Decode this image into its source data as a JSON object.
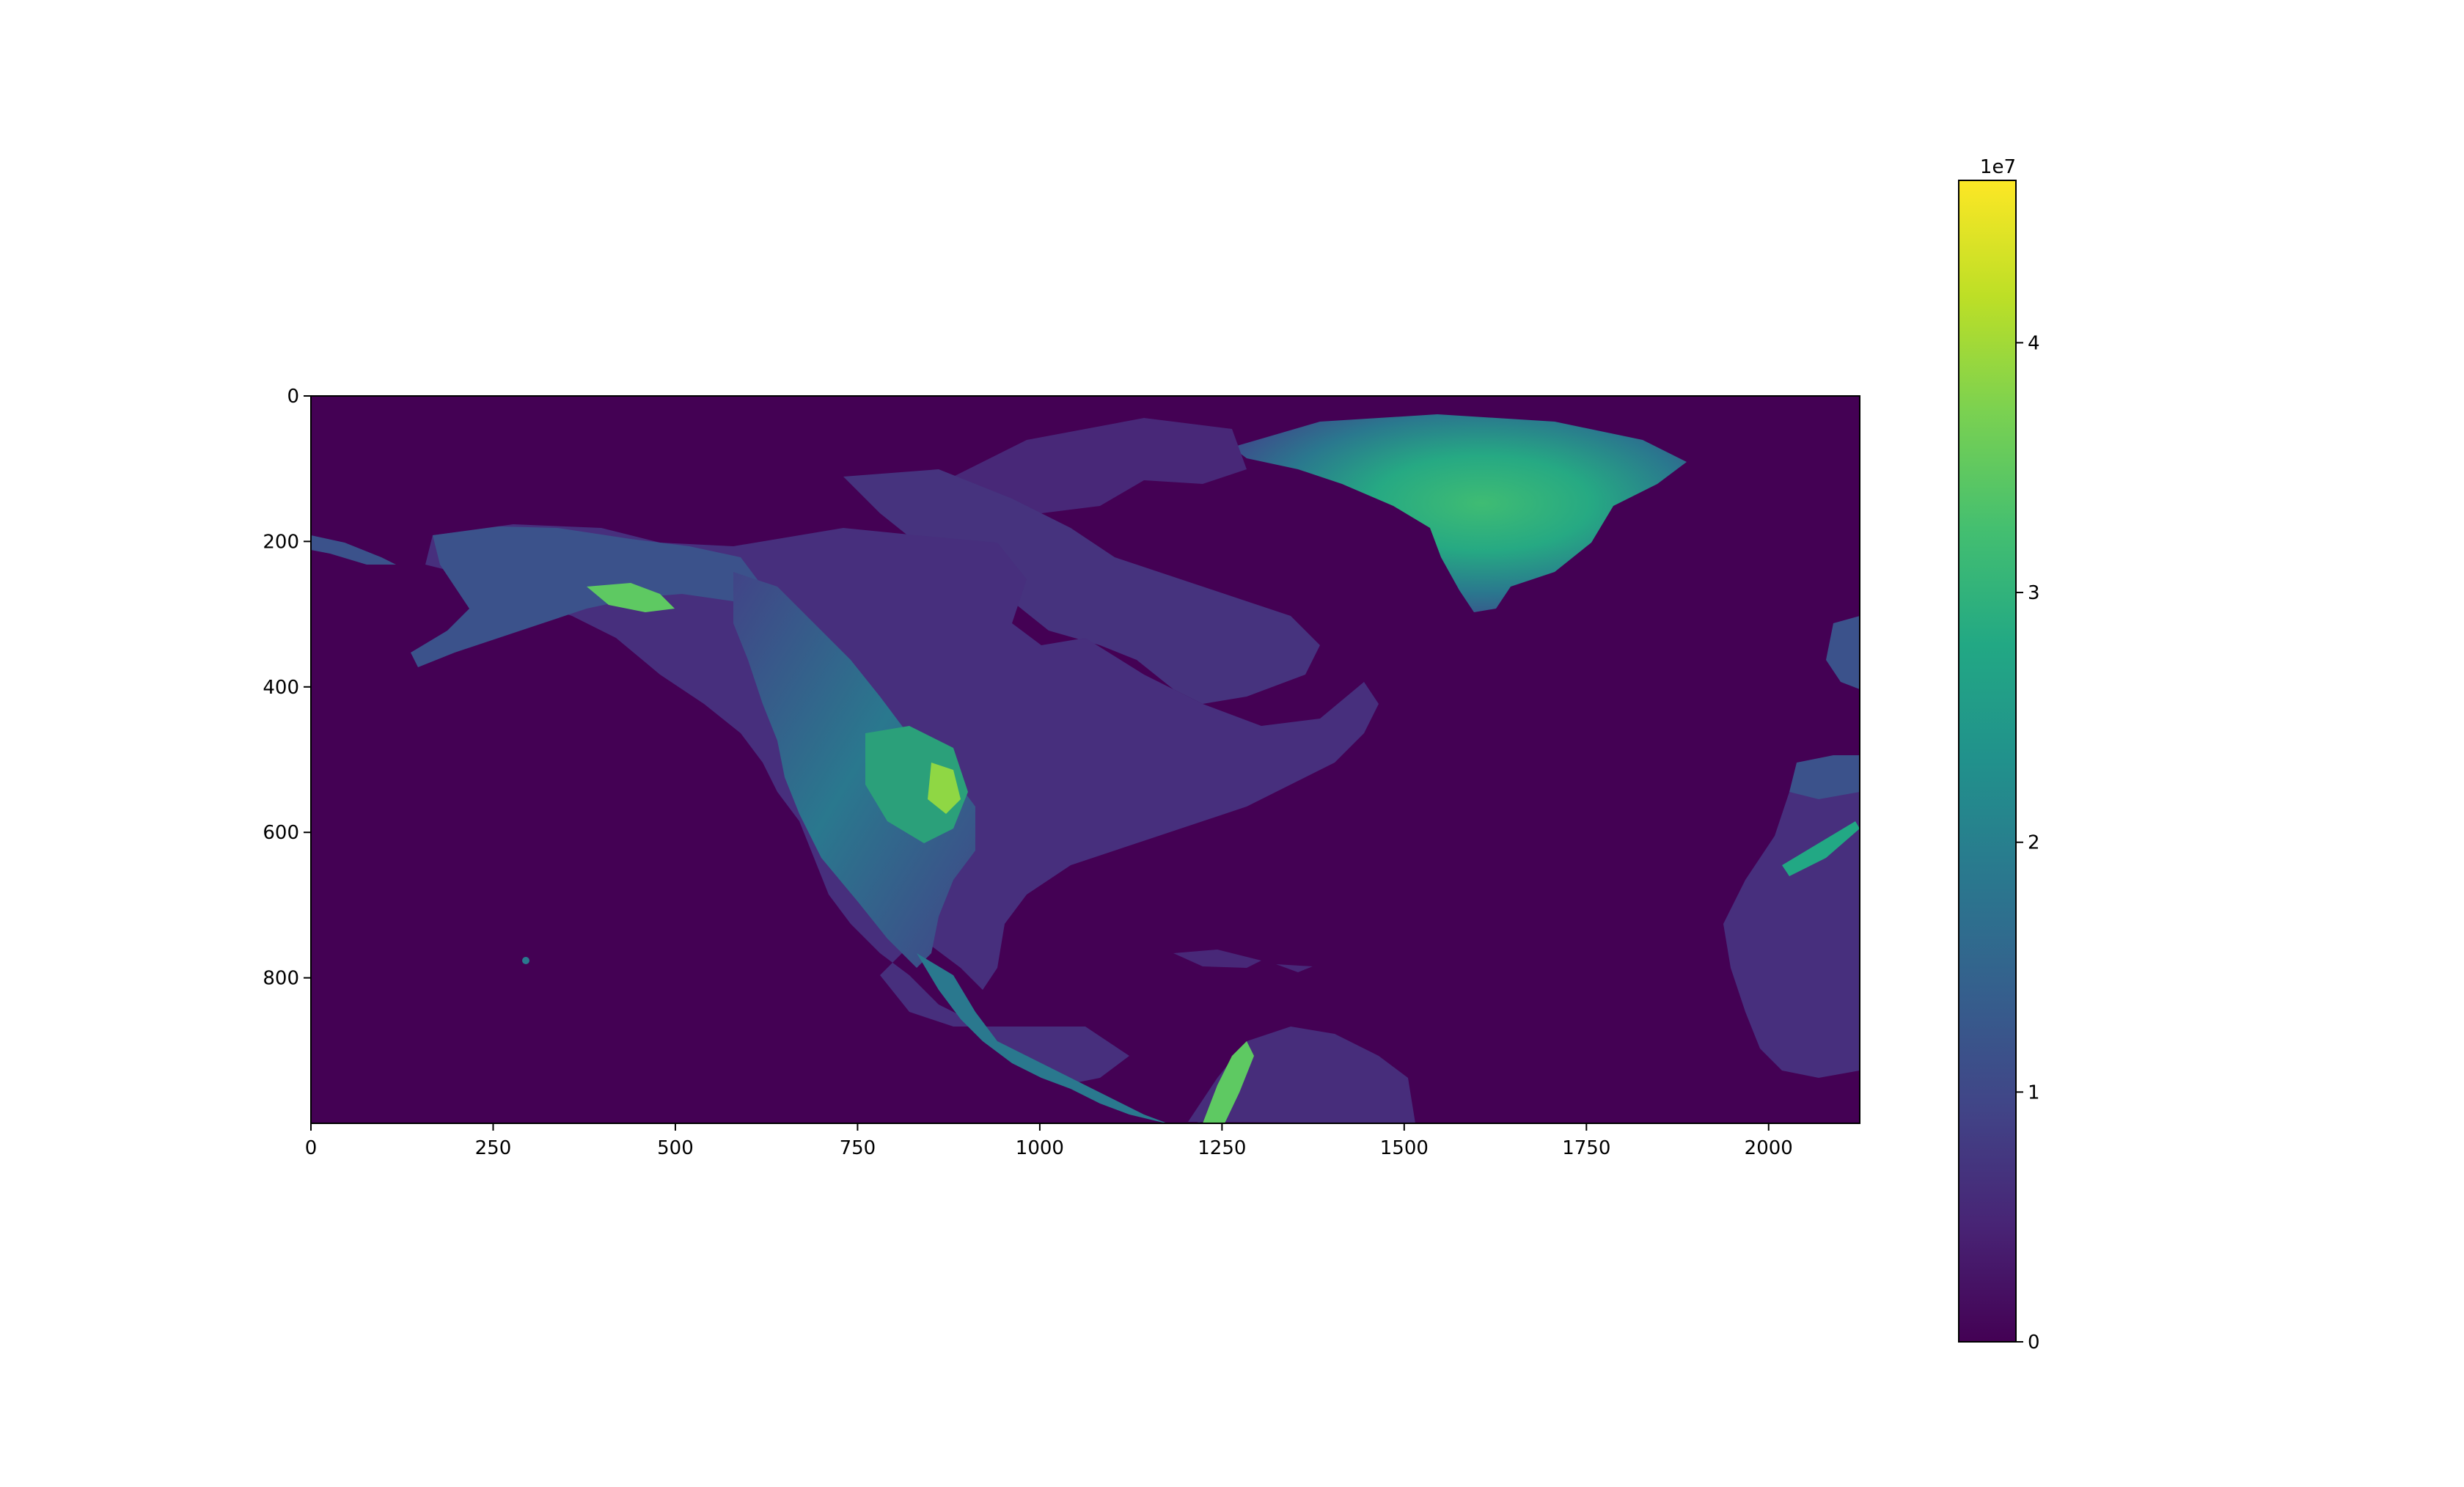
{
  "chart_data": {
    "type": "heatmap",
    "title": "",
    "xlabel": "",
    "ylabel": "",
    "description_colormap": "viridis",
    "image_shape": [
      1000,
      2125
    ],
    "xlim": [
      0,
      2125
    ],
    "ylim": [
      1000,
      0
    ],
    "x_ticks": [
      0,
      250,
      500,
      750,
      1000,
      1250,
      1500,
      1750,
      2000
    ],
    "x_tick_labels": [
      "0",
      "250",
      "500",
      "750",
      "1000",
      "1250",
      "1500",
      "1750",
      "2000"
    ],
    "y_ticks": [
      0,
      200,
      400,
      600,
      800
    ],
    "y_tick_labels": [
      "0",
      "200",
      "400",
      "600",
      "800"
    ],
    "colorbar": {
      "range": [
        0,
        4.65
      ],
      "ticks": [
        0,
        1,
        2,
        3,
        4
      ],
      "tick_labels": [
        "0",
        "1",
        "2",
        "3",
        "4"
      ],
      "offset_label": "1e7"
    },
    "colors": {
      "low": "#440154",
      "mid": "#21918c",
      "high": "#fde725"
    }
  }
}
